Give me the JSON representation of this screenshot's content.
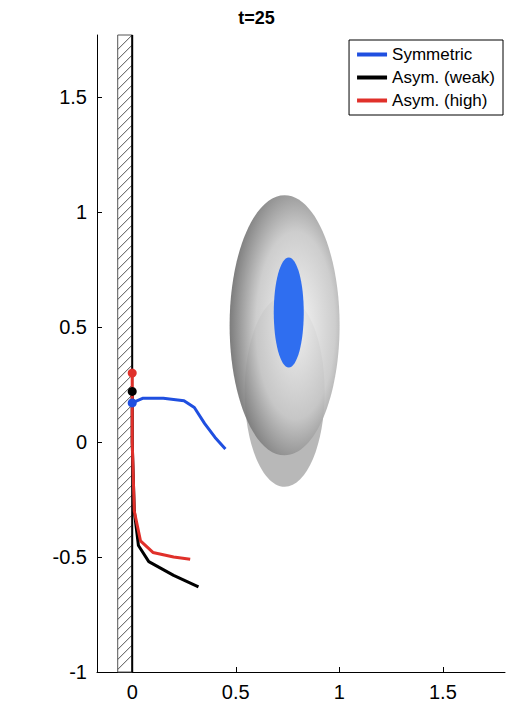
{
  "chart_data": {
    "type": "line",
    "title": "t=25",
    "xlim": [
      -0.17,
      1.8
    ],
    "ylim": [
      -1,
      1.77
    ],
    "xticks": [
      0,
      0.5,
      1,
      1.5
    ],
    "yticks": [
      -1,
      -0.5,
      0,
      0.5,
      1,
      1.5
    ],
    "grid": false,
    "legend": "upper right",
    "marker": "circle",
    "wall": [
      -0.07,
      0
    ],
    "series": [
      {
        "name": "Symmetric",
        "color": "#1f4fe0",
        "x": [
          0,
          0.05,
          0.15,
          0.25,
          0.3,
          0.35,
          0.4,
          0.45
        ],
        "values": [
          0.17,
          0.19,
          0.19,
          0.18,
          0.15,
          0.08,
          0.02,
          -0.03
        ]
      },
      {
        "name": "Asym. (weak)",
        "color": "#000000",
        "x": [
          0,
          0,
          0.01,
          0.03,
          0.08,
          0.2,
          0.32
        ],
        "values": [
          0.22,
          0,
          -0.3,
          -0.45,
          -0.52,
          -0.58,
          -0.63
        ]
      },
      {
        "name": "Asym. (high)",
        "color": "#e0302a",
        "x": [
          0,
          0,
          0.01,
          0.04,
          0.1,
          0.2,
          0.28
        ],
        "values": [
          0.3,
          0,
          -0.3,
          -0.43,
          -0.48,
          -0.5,
          -0.51
        ]
      }
    ]
  }
}
